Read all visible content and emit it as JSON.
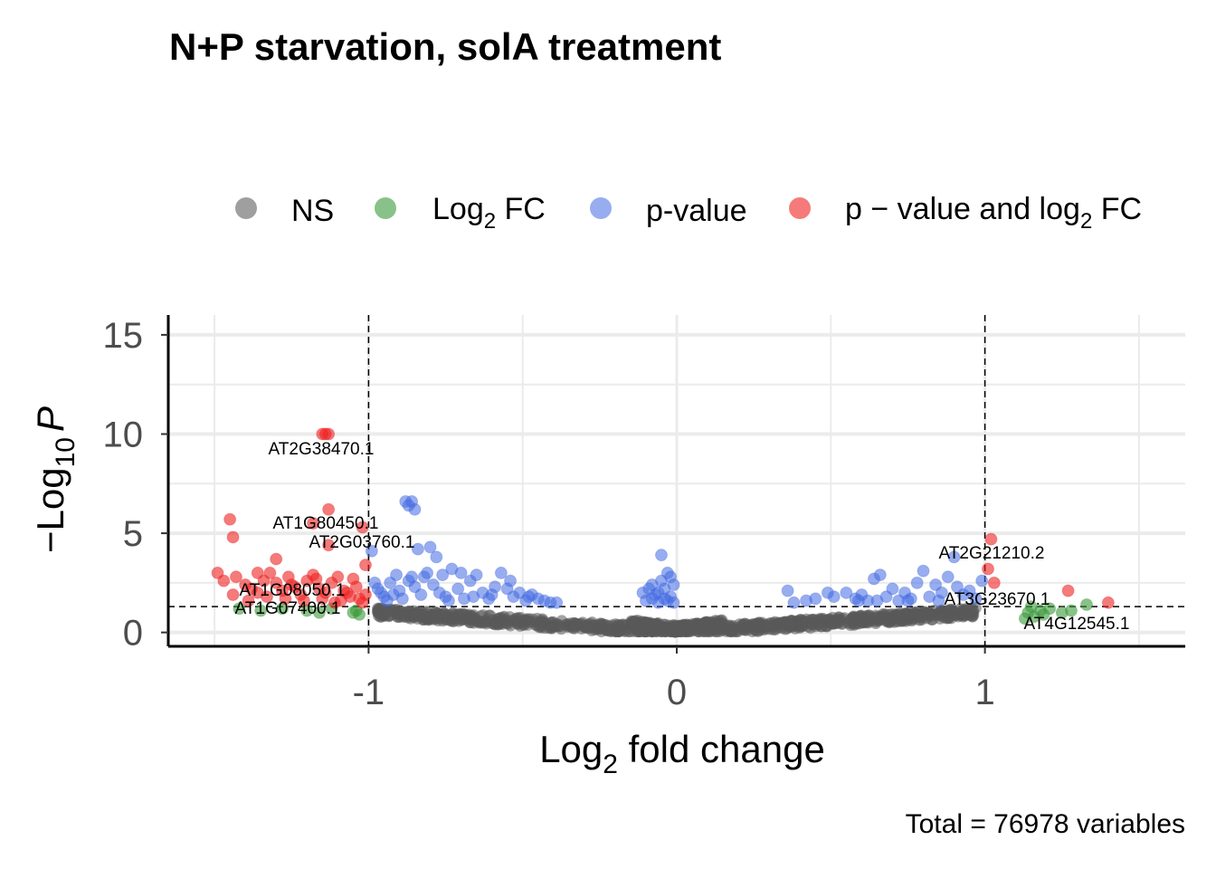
{
  "chart_data": {
    "type": "scatter",
    "title": "N+P starvation, solA treatment",
    "xlabel": "Log2 fold change",
    "xlabel_parts": {
      "base": "Log",
      "sub": "2",
      "rest": " fold change"
    },
    "ylabel_parts": {
      "minus": "−",
      "base": "Log",
      "sub": "10",
      "italic": "P"
    },
    "caption": "Total = 76978 variables",
    "xlim": [
      -1.65,
      1.65
    ],
    "ylim": [
      -0.7,
      16
    ],
    "x_ticks": [
      -1,
      0,
      1
    ],
    "x_tick_labels": [
      "-1",
      "0",
      "1"
    ],
    "y_ticks": [
      0,
      5,
      10,
      15
    ],
    "y_tick_labels": [
      "0",
      "5",
      "10",
      "15"
    ],
    "fc_cutoff": 1,
    "p_cutoff_log10": 1.3,
    "grid": true,
    "legend_position": "top",
    "legend": [
      {
        "key": "ns",
        "label": "NS",
        "color": "#7f7f7f"
      },
      {
        "key": "fc",
        "label": "Log2 FC",
        "label_parts": {
          "base": "Log",
          "sub": "2",
          "rest": " FC"
        },
        "color": "#3a9a3a"
      },
      {
        "key": "p",
        "label": "p-value",
        "color": "#4169e1"
      },
      {
        "key": "both",
        "label": "p − value and log2 FC",
        "label_parts": {
          "base": "p − value and log",
          "sub": "2",
          "rest": " FC"
        },
        "color": "#ee2222"
      }
    ],
    "series": [
      {
        "key": "both",
        "color": "#ee2222",
        "points": [
          [
            -1.15,
            10.0
          ],
          [
            -1.13,
            10.0
          ],
          [
            -1.14,
            10.0
          ],
          [
            -1.45,
            5.7
          ],
          [
            -1.18,
            5.5
          ],
          [
            -1.13,
            6.2
          ],
          [
            -1.44,
            4.8
          ],
          [
            -1.02,
            5.3
          ],
          [
            -1.01,
            3.4
          ],
          [
            -1.13,
            4.4
          ],
          [
            -1.3,
            3.7
          ],
          [
            -1.49,
            3.0
          ],
          [
            -1.47,
            2.6
          ],
          [
            -1.43,
            2.8
          ],
          [
            -1.4,
            2.4
          ],
          [
            -1.38,
            2.2
          ],
          [
            -1.36,
            2.0
          ],
          [
            -1.34,
            2.6
          ],
          [
            -1.32,
            3.0
          ],
          [
            -1.3,
            2.5
          ],
          [
            -1.28,
            2.1
          ],
          [
            -1.26,
            2.8
          ],
          [
            -1.24,
            2.3
          ],
          [
            -1.22,
            1.9
          ],
          [
            -1.2,
            2.6
          ],
          [
            -1.18,
            2.9
          ],
          [
            -1.16,
            2.2
          ],
          [
            -1.14,
            2.0
          ],
          [
            -1.12,
            2.5
          ],
          [
            -1.1,
            2.8
          ],
          [
            -1.08,
            2.1
          ],
          [
            -1.06,
            1.8
          ],
          [
            -1.04,
            2.3
          ],
          [
            -1.03,
            1.7
          ],
          [
            -1.02,
            1.5
          ],
          [
            -1.05,
            2.7
          ],
          [
            -1.09,
            1.6
          ],
          [
            -1.15,
            1.7
          ],
          [
            -1.21,
            1.6
          ],
          [
            -1.27,
            1.7
          ],
          [
            -1.33,
            1.8
          ],
          [
            -1.39,
            1.6
          ],
          [
            -1.44,
            1.9
          ],
          [
            -1.36,
            3.0
          ],
          [
            -1.25,
            2.4
          ],
          [
            -1.17,
            2.7
          ],
          [
            -1.11,
            1.5
          ],
          [
            -1.07,
            2.0
          ],
          [
            -1.01,
            1.9
          ],
          [
            1.02,
            4.7
          ],
          [
            1.01,
            3.2
          ],
          [
            1.03,
            2.5
          ],
          [
            1.27,
            2.1
          ],
          [
            1.4,
            1.5
          ]
        ]
      },
      {
        "key": "fc",
        "color": "#3a9a3a",
        "points": [
          [
            -1.05,
            1.0
          ],
          [
            -1.04,
            1.1
          ],
          [
            -1.03,
            0.9
          ],
          [
            -1.12,
            1.2
          ],
          [
            -1.2,
            1.1
          ],
          [
            -1.16,
            1.0
          ],
          [
            -1.28,
            1.2
          ],
          [
            -1.35,
            1.1
          ],
          [
            -1.42,
            1.2
          ],
          [
            1.13,
            0.7
          ],
          [
            1.14,
            1.0
          ],
          [
            1.15,
            1.3
          ],
          [
            1.16,
            0.8
          ],
          [
            1.18,
            1.1
          ],
          [
            1.19,
            0.9
          ],
          [
            1.21,
            1.2
          ],
          [
            1.25,
            1.0
          ],
          [
            1.28,
            1.1
          ],
          [
            1.33,
            1.4
          ]
        ]
      },
      {
        "key": "p",
        "color": "#4169e1",
        "points": [
          [
            -0.88,
            6.6
          ],
          [
            -0.87,
            6.4
          ],
          [
            -0.86,
            6.6
          ],
          [
            -0.85,
            6.2
          ],
          [
            -0.84,
            4.2
          ],
          [
            -0.78,
            3.8
          ],
          [
            -0.8,
            4.3
          ],
          [
            -0.99,
            4.1
          ],
          [
            -0.98,
            2.5
          ],
          [
            -0.97,
            2.2
          ],
          [
            -0.96,
            2.0
          ],
          [
            -0.95,
            1.8
          ],
          [
            -0.93,
            2.5
          ],
          [
            -0.92,
            1.9
          ],
          [
            -0.9,
            2.1
          ],
          [
            -0.89,
            1.7
          ],
          [
            -0.87,
            2.6
          ],
          [
            -0.85,
            2.3
          ],
          [
            -0.83,
            1.9
          ],
          [
            -0.81,
            3.0
          ],
          [
            -0.79,
            2.4
          ],
          [
            -0.77,
            2.0
          ],
          [
            -0.75,
            1.8
          ],
          [
            -0.73,
            3.2
          ],
          [
            -0.71,
            2.2
          ],
          [
            -0.69,
            1.7
          ],
          [
            -0.67,
            2.6
          ],
          [
            -0.65,
            2.9
          ],
          [
            -0.63,
            2.0
          ],
          [
            -0.61,
            1.7
          ],
          [
            -0.59,
            2.3
          ],
          [
            -0.57,
            3.0
          ],
          [
            -0.55,
            2.2
          ],
          [
            -0.53,
            1.8
          ],
          [
            -0.51,
            2.0
          ],
          [
            -0.49,
            1.6
          ],
          [
            -0.47,
            1.9
          ],
          [
            -0.45,
            1.7
          ],
          [
            -0.43,
            1.6
          ],
          [
            -0.41,
            1.5
          ],
          [
            -0.39,
            1.5
          ],
          [
            -0.82,
            2.8
          ],
          [
            -0.76,
            2.9
          ],
          [
            -0.7,
            3.0
          ],
          [
            -0.6,
            1.9
          ],
          [
            -0.54,
            2.6
          ],
          [
            -0.48,
            1.8
          ],
          [
            -0.94,
            1.6
          ],
          [
            -0.91,
            2.9
          ],
          [
            -0.86,
            2.8
          ],
          [
            -0.74,
            1.6
          ],
          [
            -0.66,
            1.8
          ],
          [
            -0.05,
            3.9
          ],
          [
            -0.03,
            3.0
          ],
          [
            -0.02,
            2.8
          ],
          [
            -0.01,
            2.4
          ],
          [
            -0.04,
            2.2
          ],
          [
            -0.06,
            2.0
          ],
          [
            -0.07,
            1.9
          ],
          [
            -0.08,
            1.7
          ],
          [
            -0.1,
            1.6
          ],
          [
            -0.11,
            2.0
          ],
          [
            -0.03,
            1.6
          ],
          [
            -0.02,
            1.8
          ],
          [
            -0.05,
            2.6
          ],
          [
            -0.09,
            2.2
          ],
          [
            -0.01,
            1.5
          ],
          [
            -0.06,
            1.5
          ],
          [
            -0.04,
            1.7
          ],
          [
            -0.08,
            2.4
          ],
          [
            0.36,
            2.1
          ],
          [
            0.38,
            1.5
          ],
          [
            0.42,
            1.6
          ],
          [
            0.45,
            1.7
          ],
          [
            0.49,
            2.0
          ],
          [
            0.51,
            1.8
          ],
          [
            0.55,
            2.0
          ],
          [
            0.58,
            1.7
          ],
          [
            0.6,
            1.9
          ],
          [
            0.62,
            1.6
          ],
          [
            0.64,
            2.7
          ],
          [
            0.66,
            2.9
          ],
          [
            0.68,
            1.8
          ],
          [
            0.7,
            2.2
          ],
          [
            0.72,
            1.6
          ],
          [
            0.74,
            2.0
          ],
          [
            0.76,
            1.7
          ],
          [
            0.78,
            2.5
          ],
          [
            0.8,
            3.1
          ],
          [
            0.82,
            1.8
          ],
          [
            0.84,
            2.4
          ],
          [
            0.86,
            2.0
          ],
          [
            0.88,
            2.8
          ],
          [
            0.9,
            3.8
          ],
          [
            0.91,
            2.3
          ],
          [
            0.93,
            1.9
          ],
          [
            0.95,
            2.1
          ],
          [
            0.97,
            1.7
          ],
          [
            0.99,
            2.6
          ],
          [
            0.59,
            1.6
          ],
          [
            0.65,
            1.6
          ],
          [
            0.75,
            1.6
          ],
          [
            0.85,
            1.6
          ]
        ]
      }
    ],
    "ns_points": "generated from curve",
    "gene_labels": [
      {
        "text": "AT2G38470.1",
        "x": -1.15,
        "y": 10.0
      },
      {
        "text": "AT1G80450.1",
        "x": -1.18,
        "y": 5.5
      },
      {
        "text": "AT2G03760.1",
        "x": -1.02,
        "y": 5.3
      },
      {
        "text": "AT1G08050.1",
        "x": -1.3,
        "y": 2.5
      },
      {
        "text": "AT1G07400.1",
        "x": -1.42,
        "y": 1.2
      },
      {
        "text": "AT2G21210.2",
        "x": 1.02,
        "y": 4.7
      },
      {
        "text": "AT3G23670.1",
        "x": 1.03,
        "y": 2.5
      },
      {
        "text": "AT4G12545.1",
        "x": 1.21,
        "y": 1.2
      }
    ]
  }
}
